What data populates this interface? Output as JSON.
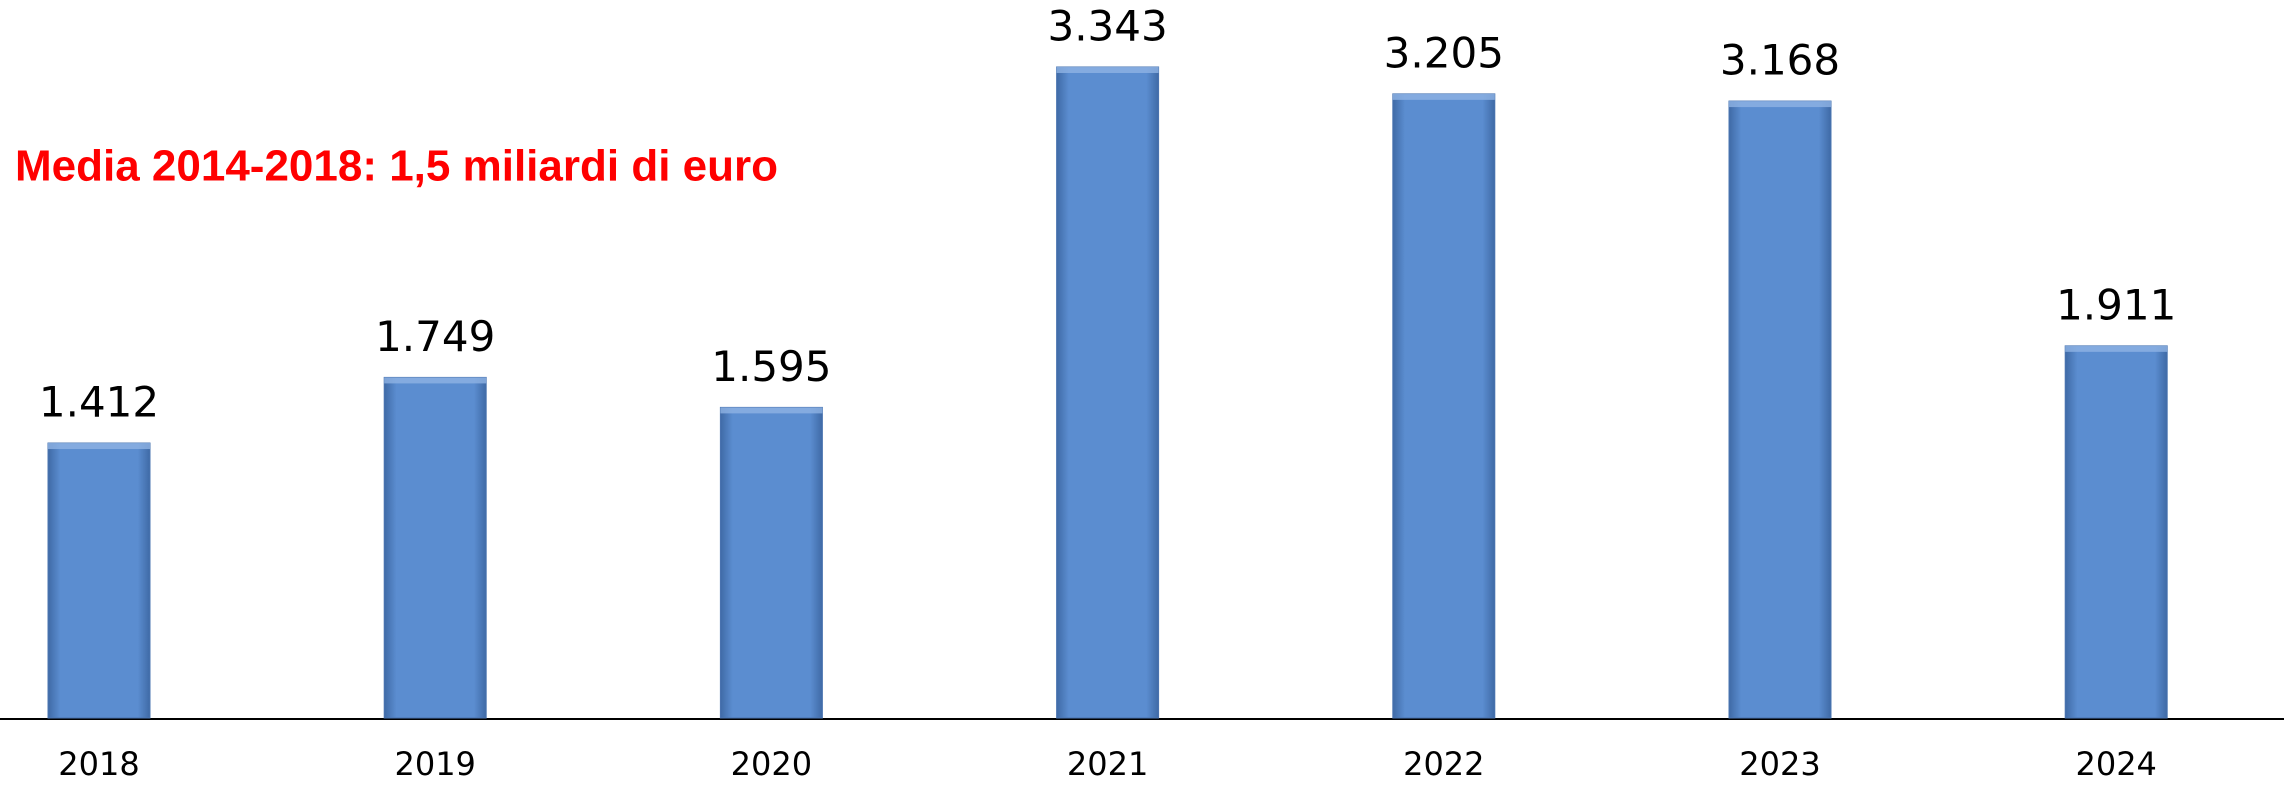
{
  "chart_data": {
    "type": "bar",
    "annotation": "Media 2014-2018: 1,5 miliardi di euro",
    "categories": [
      "2018",
      "2019",
      "2020",
      "2021",
      "2022",
      "2023",
      "2024"
    ],
    "values": [
      1412,
      1749,
      1595,
      3343,
      3205,
      3168,
      1911
    ],
    "value_labels": [
      "1.412",
      "1.749",
      "1.595",
      "3.343",
      "3.205",
      "3.168",
      "1.911"
    ],
    "color": "#5b8dd0"
  }
}
